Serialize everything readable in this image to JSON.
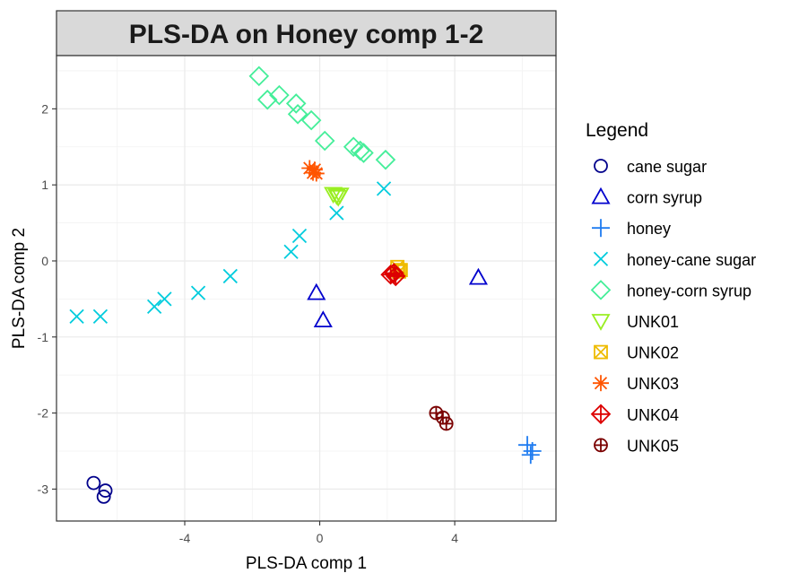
{
  "chart_data": {
    "type": "scatter",
    "title": "PLS-DA on Honey comp 1-2",
    "xlabel": "PLS-DA comp 1",
    "ylabel": "PLS-DA comp 2",
    "xlim": [
      -7.8,
      7.0
    ],
    "ylim": [
      -3.42,
      2.7
    ],
    "xticks": [
      -4,
      0,
      4
    ],
    "yticks": [
      -3,
      -2,
      -1,
      0,
      1,
      2
    ],
    "grid": true,
    "legend": {
      "title": "Legend",
      "position": "right"
    },
    "series": [
      {
        "name": "cane sugar",
        "shape": "circle",
        "color": "#00008B",
        "points": [
          [
            -6.7,
            -2.92
          ],
          [
            -6.35,
            -3.02
          ],
          [
            -6.4,
            -3.1
          ]
        ]
      },
      {
        "name": "corn syrup",
        "shape": "triangle",
        "color": "#0000CD",
        "points": [
          [
            -0.1,
            -0.42
          ],
          [
            0.1,
            -0.78
          ],
          [
            4.7,
            -0.22
          ]
        ]
      },
      {
        "name": "honey",
        "shape": "plus",
        "color": "#1E7BF0",
        "points": [
          [
            6.15,
            -2.42
          ],
          [
            6.3,
            -2.5
          ],
          [
            6.25,
            -2.55
          ]
        ]
      },
      {
        "name": "honey-cane sugar",
        "shape": "cross",
        "color": "#00CCDD",
        "points": [
          [
            -7.2,
            -0.73
          ],
          [
            -6.5,
            -0.73
          ],
          [
            -4.9,
            -0.6
          ],
          [
            -4.6,
            -0.5
          ],
          [
            -3.6,
            -0.42
          ],
          [
            -2.65,
            -0.2
          ],
          [
            -0.85,
            0.12
          ],
          [
            -0.6,
            0.33
          ],
          [
            0.5,
            0.63
          ],
          [
            1.9,
            0.95
          ]
        ]
      },
      {
        "name": "honey-corn syrup",
        "shape": "diamond",
        "color": "#44EE99",
        "points": [
          [
            -1.8,
            2.43
          ],
          [
            -1.55,
            2.12
          ],
          [
            -1.2,
            2.18
          ],
          [
            -0.7,
            2.07
          ],
          [
            -0.65,
            1.93
          ],
          [
            -0.25,
            1.85
          ],
          [
            0.15,
            1.58
          ],
          [
            1.0,
            1.5
          ],
          [
            1.2,
            1.45
          ],
          [
            1.3,
            1.42
          ],
          [
            1.95,
            1.33
          ]
        ]
      },
      {
        "name": "UNK01",
        "shape": "triangle-down",
        "color": "#99EE22",
        "points": [
          [
            0.4,
            0.88
          ],
          [
            0.5,
            0.86
          ],
          [
            0.6,
            0.87
          ],
          [
            0.55,
            0.84
          ]
        ]
      },
      {
        "name": "UNK02",
        "shape": "square-cross",
        "color": "#EEBB00",
        "points": [
          [
            2.3,
            -0.08
          ],
          [
            2.35,
            -0.14
          ],
          [
            2.4,
            -0.12
          ]
        ]
      },
      {
        "name": "UNK03",
        "shape": "asterisk",
        "color": "#FF5500",
        "points": [
          [
            -0.3,
            1.22
          ],
          [
            -0.2,
            1.16
          ],
          [
            -0.15,
            1.2
          ],
          [
            -0.1,
            1.15
          ]
        ]
      },
      {
        "name": "UNK04",
        "shape": "diamond-plus",
        "color": "#DD0000",
        "points": [
          [
            2.1,
            -0.18
          ],
          [
            2.2,
            -0.16
          ],
          [
            2.25,
            -0.2
          ]
        ]
      },
      {
        "name": "UNK05",
        "shape": "circle-plus",
        "color": "#7A0000",
        "points": [
          [
            3.45,
            -2.0
          ],
          [
            3.65,
            -2.06
          ],
          [
            3.75,
            -2.14
          ]
        ]
      }
    ]
  }
}
